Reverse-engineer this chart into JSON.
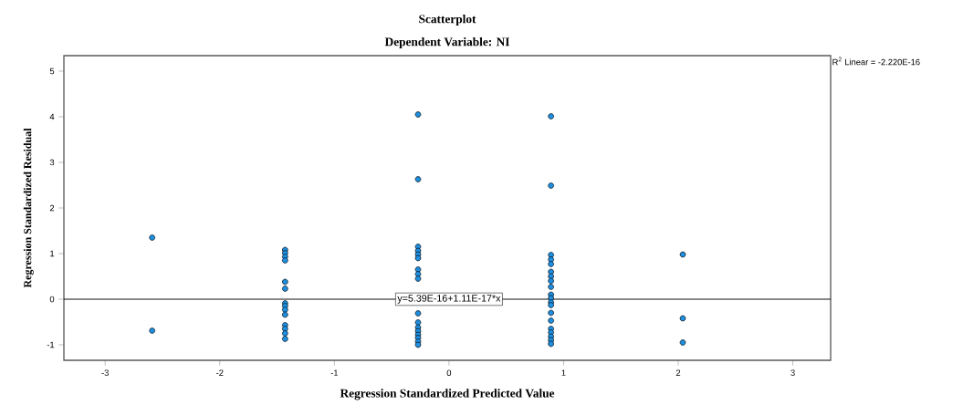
{
  "chart_data": {
    "type": "scatter",
    "title": "Scatterplot",
    "subtitle": "Dependent Variable: NI",
    "xlabel": "Regression Standardized Predicted Value",
    "ylabel": "Regression Standardized Residual",
    "xlim": [
      -3.36,
      3.33
    ],
    "ylim": [
      -1.34,
      5.34
    ],
    "xticks": [
      -3,
      -2,
      -1,
      0,
      1,
      2,
      3
    ],
    "yticks": [
      -1,
      0,
      1,
      2,
      3,
      4,
      5
    ],
    "grid": false,
    "series": [
      {
        "marker": "circle",
        "color": "#1f8fe0",
        "x": [
          -2.59,
          -2.59,
          -1.43,
          -1.43,
          -1.43,
          -1.43,
          -1.43,
          -1.43,
          -1.43,
          -1.43,
          -1.43,
          -1.43,
          -1.43,
          -1.43,
          -1.43,
          -1.43,
          -0.27,
          -0.27,
          -0.27,
          -0.27,
          -0.27,
          -0.27,
          -0.27,
          -0.27,
          -0.27,
          -0.27,
          -0.27,
          -0.27,
          -0.27,
          -0.27,
          -0.27,
          -0.27,
          -0.27,
          0.89,
          0.89,
          0.89,
          0.89,
          0.89,
          0.89,
          0.89,
          0.89,
          0.89,
          0.89,
          0.89,
          0.89,
          0.89,
          0.89,
          0.89,
          0.89,
          0.89,
          0.89,
          0.89,
          0.89,
          2.04,
          2.04,
          2.04
        ],
        "values": [
          1.35,
          -0.69,
          1.08,
          1.01,
          0.93,
          0.85,
          0.38,
          0.23,
          -0.09,
          -0.15,
          -0.23,
          -0.34,
          -0.57,
          -0.65,
          -0.75,
          -0.87,
          4.05,
          2.63,
          1.15,
          1.06,
          0.98,
          0.9,
          0.65,
          0.55,
          0.45,
          -0.31,
          -0.51,
          -0.62,
          -0.7,
          -0.78,
          -0.85,
          -0.93,
          -1.0,
          4.01,
          2.49,
          0.97,
          0.87,
          0.77,
          0.6,
          0.5,
          0.4,
          0.27,
          0.1,
          0.02,
          -0.07,
          -0.13,
          -0.3,
          -0.47,
          -0.65,
          -0.73,
          -0.82,
          -0.9,
          -0.98,
          0.98,
          -0.42,
          -0.95
        ]
      },
      {
        "type": "line",
        "marker": "none",
        "color": "#000000",
        "x": [
          -3.36,
          3.33
        ],
        "values": [
          0,
          0
        ]
      }
    ],
    "annotations": [
      {
        "text": "y=5.39E-16+1.11E-17*x",
        "x": 0,
        "y": 0
      },
      "R$^{2}$ Linear = -2.220E-16"
    ]
  }
}
